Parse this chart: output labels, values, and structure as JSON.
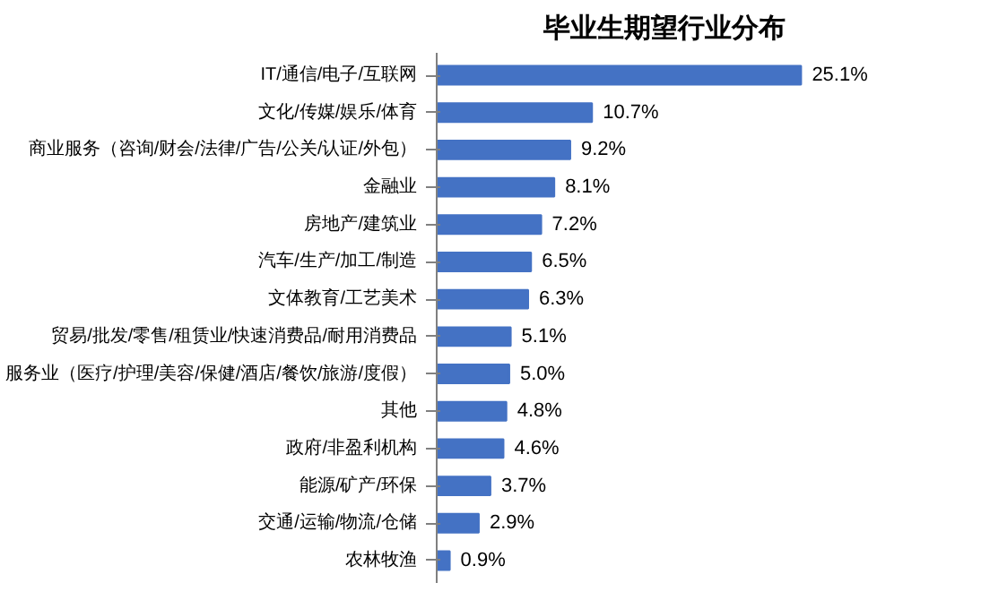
{
  "chart_data": {
    "type": "bar",
    "orientation": "horizontal",
    "title": "毕业生期望行业分布",
    "categories": [
      "IT/通信/电子/互联网",
      "文化/传媒/娱乐/体育",
      "商业服务（咨询/财会/法律/广告/公关/认证/外包）",
      "金融业",
      "房地产/建筑业",
      "汽车/生产/加工/制造",
      "文体教育/工艺美术",
      "贸易/批发/零售/租赁业/快速消费品/耐用消费品",
      "服务业（医疗/护理/美容/保健/酒店/餐饮/旅游/度假）",
      "其他",
      "政府/非盈利机构",
      "能源/矿产/环保",
      "交通/运输/物流/仓储",
      "农林牧渔"
    ],
    "values": [
      25.1,
      10.7,
      9.2,
      8.1,
      7.2,
      6.5,
      6.3,
      5.1,
      5.0,
      4.8,
      4.6,
      3.7,
      2.9,
      0.9
    ],
    "value_labels": [
      "25.1%",
      "10.7%",
      "9.2%",
      "8.1%",
      "7.2%",
      "6.5%",
      "6.3%",
      "5.1%",
      "5.0%",
      "4.8%",
      "4.6%",
      "3.7%",
      "2.9%",
      "0.9%"
    ],
    "color": "#4472c4",
    "grid": false,
    "tick_labels": "y"
  }
}
